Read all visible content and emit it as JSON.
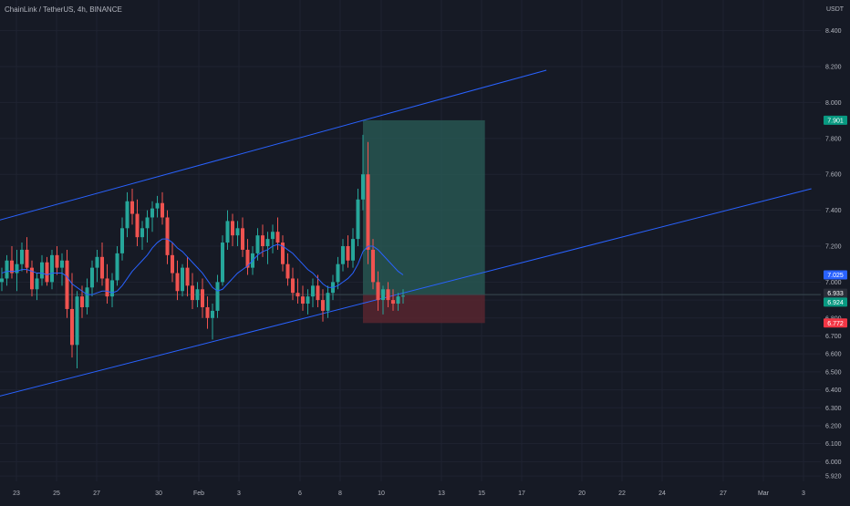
{
  "header": {
    "symbol": "ChainLink / TetherUS, 4h, BINANCE",
    "currency": "USDT"
  },
  "colors": {
    "background": "#161a25",
    "grid": "#1f2331",
    "up": "#26a69a",
    "down": "#ef5350",
    "channel": "#2962ff",
    "ma": "#2962ff",
    "profit_zone": "#2a5e57",
    "loss_zone": "#5b2630",
    "tag_target": "#089981",
    "tag_stop": "#f23645",
    "tag_blue": "#2962ff"
  },
  "chart_data": {
    "type": "candlestick",
    "title": "ChainLink / TetherUS, 4h, BINANCE",
    "y_unit": "USDT",
    "ylim": [
      5.88,
      8.52
    ],
    "y_ticks": [
      "8.400",
      "8.200",
      "8.000",
      "7.800",
      "7.600",
      "7.400",
      "7.200",
      "7.000",
      "6.900",
      "6.800",
      "6.700",
      "6.600",
      "6.500",
      "6.400",
      "6.300",
      "6.200",
      "6.100",
      "6.000",
      "5.920"
    ],
    "x_ticks": [
      "23",
      "25",
      "27",
      "30",
      "Feb",
      "3",
      "6",
      "8",
      "10",
      "13",
      "15",
      "17",
      "20",
      "22",
      "24",
      "27",
      "Mar",
      "3"
    ],
    "price_tags": [
      {
        "label": "7.901",
        "value": 7.901,
        "kind": "target"
      },
      {
        "label": "7.025",
        "value": 7.025,
        "kind": "blue"
      },
      {
        "label": "6.933",
        "value": 6.933,
        "kind": "dark"
      },
      {
        "label": "6.924",
        "value": 6.924,
        "kind": "current"
      },
      {
        "label": "6.772",
        "value": 6.772,
        "kind": "stop"
      }
    ],
    "position": {
      "entry": 6.93,
      "target": 7.901,
      "stop": 6.772,
      "start_date": "Feb 9",
      "end_date": "Feb 14"
    },
    "channel": {
      "upper": [
        {
          "date": "Jan 22",
          "price": 7.34
        },
        {
          "date": "Feb 18",
          "price": 8.18
        }
      ],
      "lower": [
        {
          "date": "Jan 22",
          "price": 6.36
        },
        {
          "date": "Mar 3",
          "price": 7.52
        }
      ]
    },
    "candles": [
      {
        "o": 7.0,
        "h": 7.08,
        "l": 6.95,
        "c": 7.02
      },
      {
        "o": 7.02,
        "h": 7.15,
        "l": 6.98,
        "c": 7.12
      },
      {
        "o": 7.12,
        "h": 7.2,
        "l": 7.02,
        "c": 7.05
      },
      {
        "o": 7.05,
        "h": 7.18,
        "l": 6.95,
        "c": 7.1
      },
      {
        "o": 7.1,
        "h": 7.22,
        "l": 7.06,
        "c": 7.18
      },
      {
        "o": 7.18,
        "h": 7.25,
        "l": 7.05,
        "c": 7.08
      },
      {
        "o": 7.08,
        "h": 7.12,
        "l": 6.92,
        "c": 6.96
      },
      {
        "o": 6.96,
        "h": 7.05,
        "l": 6.9,
        "c": 7.02
      },
      {
        "o": 7.02,
        "h": 7.15,
        "l": 6.98,
        "c": 7.11
      },
      {
        "o": 7.11,
        "h": 7.14,
        "l": 6.98,
        "c": 7.0
      },
      {
        "o": 7.0,
        "h": 7.18,
        "l": 6.96,
        "c": 7.15
      },
      {
        "o": 7.15,
        "h": 7.2,
        "l": 7.04,
        "c": 7.08
      },
      {
        "o": 7.08,
        "h": 7.16,
        "l": 6.98,
        "c": 7.12
      },
      {
        "o": 7.12,
        "h": 7.18,
        "l": 6.8,
        "c": 6.85
      },
      {
        "o": 6.85,
        "h": 7.05,
        "l": 6.58,
        "c": 6.65
      },
      {
        "o": 6.65,
        "h": 6.95,
        "l": 6.52,
        "c": 6.92
      },
      {
        "o": 6.92,
        "h": 6.98,
        "l": 6.8,
        "c": 6.86
      },
      {
        "o": 6.86,
        "h": 7.02,
        "l": 6.82,
        "c": 6.97
      },
      {
        "o": 6.97,
        "h": 7.12,
        "l": 6.92,
        "c": 7.08
      },
      {
        "o": 7.08,
        "h": 7.18,
        "l": 7.0,
        "c": 7.14
      },
      {
        "o": 7.14,
        "h": 7.22,
        "l": 6.98,
        "c": 7.02
      },
      {
        "o": 7.02,
        "h": 7.1,
        "l": 6.88,
        "c": 6.92
      },
      {
        "o": 6.92,
        "h": 7.05,
        "l": 6.86,
        "c": 7.01
      },
      {
        "o": 7.01,
        "h": 7.2,
        "l": 6.98,
        "c": 7.16
      },
      {
        "o": 7.16,
        "h": 7.36,
        "l": 7.12,
        "c": 7.3
      },
      {
        "o": 7.3,
        "h": 7.5,
        "l": 7.25,
        "c": 7.45
      },
      {
        "o": 7.45,
        "h": 7.52,
        "l": 7.32,
        "c": 7.38
      },
      {
        "o": 7.38,
        "h": 7.46,
        "l": 7.2,
        "c": 7.25
      },
      {
        "o": 7.25,
        "h": 7.34,
        "l": 7.18,
        "c": 7.3
      },
      {
        "o": 7.3,
        "h": 7.4,
        "l": 7.22,
        "c": 7.36
      },
      {
        "o": 7.36,
        "h": 7.45,
        "l": 7.28,
        "c": 7.41
      },
      {
        "o": 7.41,
        "h": 7.48,
        "l": 7.36,
        "c": 7.44
      },
      {
        "o": 7.44,
        "h": 7.5,
        "l": 7.32,
        "c": 7.36
      },
      {
        "o": 7.36,
        "h": 7.4,
        "l": 7.1,
        "c": 7.15
      },
      {
        "o": 7.15,
        "h": 7.22,
        "l": 7.0,
        "c": 7.05
      },
      {
        "o": 7.05,
        "h": 7.12,
        "l": 6.9,
        "c": 6.95
      },
      {
        "o": 6.95,
        "h": 7.1,
        "l": 6.92,
        "c": 7.08
      },
      {
        "o": 7.08,
        "h": 7.14,
        "l": 6.92,
        "c": 6.98
      },
      {
        "o": 6.98,
        "h": 7.05,
        "l": 6.85,
        "c": 6.9
      },
      {
        "o": 6.9,
        "h": 7.0,
        "l": 6.86,
        "c": 6.96
      },
      {
        "o": 6.96,
        "h": 7.02,
        "l": 6.8,
        "c": 6.86
      },
      {
        "o": 6.86,
        "h": 6.92,
        "l": 6.74,
        "c": 6.8
      },
      {
        "o": 6.8,
        "h": 6.88,
        "l": 6.68,
        "c": 6.84
      },
      {
        "o": 6.84,
        "h": 7.04,
        "l": 6.8,
        "c": 7.0
      },
      {
        "o": 7.0,
        "h": 7.26,
        "l": 6.98,
        "c": 7.22
      },
      {
        "o": 7.22,
        "h": 7.4,
        "l": 7.18,
        "c": 7.34
      },
      {
        "o": 7.34,
        "h": 7.38,
        "l": 7.2,
        "c": 7.26
      },
      {
        "o": 7.26,
        "h": 7.34,
        "l": 7.2,
        "c": 7.3
      },
      {
        "o": 7.3,
        "h": 7.36,
        "l": 7.14,
        "c": 7.18
      },
      {
        "o": 7.18,
        "h": 7.24,
        "l": 7.04,
        "c": 7.08
      },
      {
        "o": 7.08,
        "h": 7.2,
        "l": 7.04,
        "c": 7.16
      },
      {
        "o": 7.16,
        "h": 7.3,
        "l": 7.12,
        "c": 7.26
      },
      {
        "o": 7.26,
        "h": 7.32,
        "l": 7.14,
        "c": 7.2
      },
      {
        "o": 7.2,
        "h": 7.28,
        "l": 7.1,
        "c": 7.24
      },
      {
        "o": 7.24,
        "h": 7.32,
        "l": 7.16,
        "c": 7.28
      },
      {
        "o": 7.28,
        "h": 7.36,
        "l": 7.18,
        "c": 7.22
      },
      {
        "o": 7.22,
        "h": 7.26,
        "l": 7.06,
        "c": 7.1
      },
      {
        "o": 7.1,
        "h": 7.16,
        "l": 6.98,
        "c": 7.02
      },
      {
        "o": 7.02,
        "h": 7.08,
        "l": 6.9,
        "c": 6.94
      },
      {
        "o": 6.94,
        "h": 7.02,
        "l": 6.88,
        "c": 6.92
      },
      {
        "o": 6.92,
        "h": 6.98,
        "l": 6.84,
        "c": 6.88
      },
      {
        "o": 6.88,
        "h": 6.96,
        "l": 6.82,
        "c": 6.92
      },
      {
        "o": 6.92,
        "h": 7.02,
        "l": 6.86,
        "c": 6.98
      },
      {
        "o": 6.98,
        "h": 7.04,
        "l": 6.86,
        "c": 6.9
      },
      {
        "o": 6.9,
        "h": 6.96,
        "l": 6.78,
        "c": 6.84
      },
      {
        "o": 6.84,
        "h": 6.98,
        "l": 6.8,
        "c": 6.94
      },
      {
        "o": 6.94,
        "h": 7.04,
        "l": 6.9,
        "c": 7.0
      },
      {
        "o": 7.0,
        "h": 7.14,
        "l": 6.96,
        "c": 7.1
      },
      {
        "o": 7.1,
        "h": 7.24,
        "l": 7.06,
        "c": 7.2
      },
      {
        "o": 7.2,
        "h": 7.26,
        "l": 7.08,
        "c": 7.12
      },
      {
        "o": 7.12,
        "h": 7.3,
        "l": 7.08,
        "c": 7.24
      },
      {
        "o": 7.24,
        "h": 7.52,
        "l": 7.2,
        "c": 7.46
      },
      {
        "o": 7.46,
        "h": 7.82,
        "l": 7.4,
        "c": 7.6
      },
      {
        "o": 7.6,
        "h": 7.78,
        "l": 7.1,
        "c": 7.18
      },
      {
        "o": 7.18,
        "h": 7.24,
        "l": 6.96,
        "c": 7.0
      },
      {
        "o": 7.0,
        "h": 7.06,
        "l": 6.84,
        "c": 6.9
      },
      {
        "o": 6.9,
        "h": 6.98,
        "l": 6.82,
        "c": 6.96
      },
      {
        "o": 6.96,
        "h": 7.0,
        "l": 6.86,
        "c": 6.9
      },
      {
        "o": 6.9,
        "h": 6.96,
        "l": 6.84,
        "c": 6.88
      },
      {
        "o": 6.88,
        "h": 6.94,
        "l": 6.84,
        "c": 6.92
      },
      {
        "o": 6.92,
        "h": 6.96,
        "l": 6.88,
        "c": 6.924
      }
    ],
    "ma": [
      7.05,
      7.06,
      7.06,
      7.06,
      7.07,
      7.07,
      7.06,
      7.05,
      7.05,
      7.04,
      7.05,
      7.05,
      7.05,
      7.03,
      6.99,
      6.97,
      6.95,
      6.93,
      6.93,
      6.94,
      6.95,
      6.95,
      6.94,
      6.95,
      6.98,
      7.02,
      7.06,
      7.09,
      7.12,
      7.15,
      7.19,
      7.22,
      7.24,
      7.24,
      7.22,
      7.19,
      7.17,
      7.14,
      7.11,
      7.08,
      7.05,
      7.01,
      6.97,
      6.95,
      6.96,
      6.99,
      7.02,
      7.05,
      7.07,
      7.09,
      7.12,
      7.15,
      7.17,
      7.18,
      7.2,
      7.21,
      7.2,
      7.18,
      7.16,
      7.13,
      7.1,
      7.07,
      7.05,
      7.02,
      6.99,
      6.97,
      6.97,
      6.98,
      7.0,
      7.02,
      7.05,
      7.1,
      7.17,
      7.2,
      7.2,
      7.18,
      7.15,
      7.12,
      7.09,
      7.06,
      7.04
    ]
  }
}
